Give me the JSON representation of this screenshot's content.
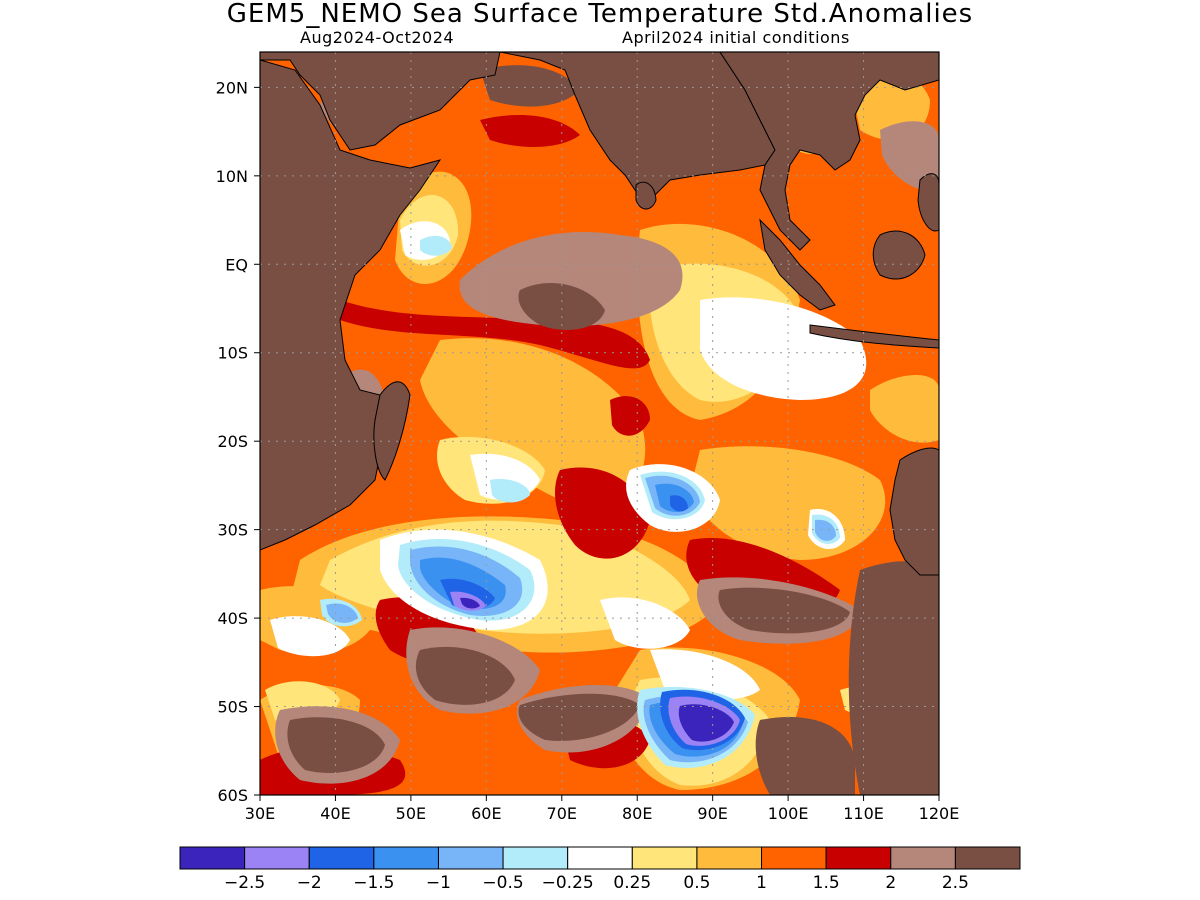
{
  "title": "GEM5_NEMO Sea Surface Temperature Std.Anomalies",
  "subtitle_left": "Aug2024-Oct2024",
  "subtitle_right": "April2024 initial conditions",
  "map": {
    "lon_range": [
      30,
      120
    ],
    "lat_range": [
      -60,
      24
    ],
    "lat_ticks": [
      {
        "v": 20,
        "label": "20N"
      },
      {
        "v": 10,
        "label": "10N"
      },
      {
        "v": 0,
        "label": "EQ"
      },
      {
        "v": -10,
        "label": "10S"
      },
      {
        "v": -20,
        "label": "20S"
      },
      {
        "v": -30,
        "label": "30S"
      },
      {
        "v": -40,
        "label": "40S"
      },
      {
        "v": -50,
        "label": "50S"
      },
      {
        "v": -60,
        "label": "60S"
      }
    ],
    "lon_ticks": [
      {
        "v": 30,
        "label": "30E"
      },
      {
        "v": 40,
        "label": "40E"
      },
      {
        "v": 50,
        "label": "50E"
      },
      {
        "v": 60,
        "label": "60E"
      },
      {
        "v": 70,
        "label": "70E"
      },
      {
        "v": 80,
        "label": "80E"
      },
      {
        "v": 90,
        "label": "90E"
      },
      {
        "v": 100,
        "label": "100E"
      },
      {
        "v": 110,
        "label": "110E"
      },
      {
        "v": 120,
        "label": "120E"
      }
    ],
    "land_color": "#7a4f43",
    "grid": "dotted"
  },
  "colorbar": {
    "colors": [
      "#3a24bb",
      "#9b82f5",
      "#1f63e6",
      "#3a91f0",
      "#78b5f8",
      "#b2ecfa",
      "#ffffff",
      "#ffe57a",
      "#ffbb3c",
      "#ff6300",
      "#c80000",
      "#b4877a",
      "#7a4f43"
    ],
    "labels": [
      "-2.5",
      "-2",
      "-1.5",
      "-1",
      "-0.5",
      "-0.25",
      "0.25",
      "0.5",
      "1",
      "1.5",
      "2",
      "2.5"
    ]
  }
}
